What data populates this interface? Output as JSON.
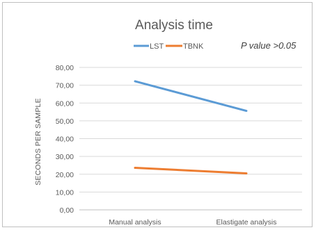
{
  "chart_data": {
    "type": "line",
    "title": "Analysis time",
    "annotation": "P value >0.05",
    "xlabel": "",
    "ylabel": "SECONDS PER SAMPLE",
    "categories": [
      "Manual analysis",
      "Elastigate analysis"
    ],
    "ylim": [
      0,
      80
    ],
    "ytick_labels": [
      "0,00",
      "10,00",
      "20,00",
      "30,00",
      "40,00",
      "50,00",
      "60,00",
      "70,00",
      "80,00"
    ],
    "grid": true,
    "legend_position": "top",
    "series": [
      {
        "name": "LST",
        "values": [
          72.2,
          55.6
        ],
        "color": "#5b9bd5"
      },
      {
        "name": "TBNK",
        "values": [
          23.6,
          20.5
        ],
        "color": "#ed7d31"
      }
    ]
  }
}
